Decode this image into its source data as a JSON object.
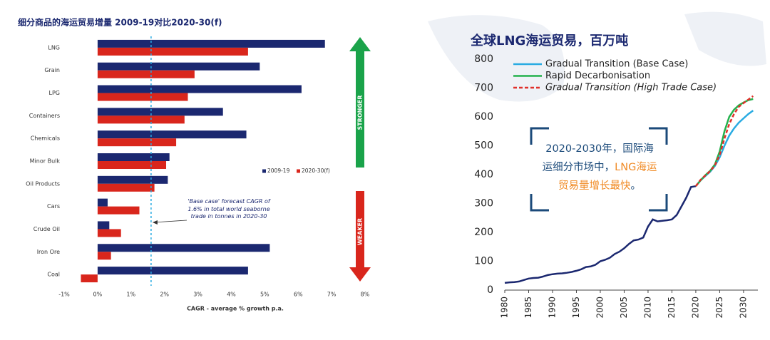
{
  "chart_data": [
    {
      "type": "barh",
      "title": "细分商品的海运贸易增量 2009-19对比2020-30(f)",
      "categories": [
        "LNG",
        "Grain",
        "LPG",
        "Containers",
        "Chemicals",
        "Minor Bulk",
        "Oil Products",
        "Cars",
        "Crude Oil",
        "Iron Ore",
        "Coal"
      ],
      "series": [
        {
          "name": "2009-19",
          "color": "#1b2870",
          "values": [
            6.8,
            4.85,
            6.1,
            3.75,
            4.45,
            2.15,
            2.1,
            0.3,
            0.35,
            5.15,
            4.5
          ]
        },
        {
          "name": "2020-30(f)",
          "color": "#d9261c",
          "values": [
            4.5,
            2.9,
            2.7,
            2.6,
            2.35,
            2.05,
            1.7,
            1.25,
            0.7,
            0.4,
            -0.5
          ]
        }
      ],
      "xlim": [
        -1,
        8
      ],
      "xticks": [
        {
          "value": -1,
          "label": "-1%"
        },
        {
          "value": 0,
          "label": "0%"
        },
        {
          "value": 1,
          "label": "1%"
        },
        {
          "value": 2,
          "label": "2%"
        },
        {
          "value": 3,
          "label": "3%"
        },
        {
          "value": 4,
          "label": "4%"
        },
        {
          "value": 5,
          "label": "5%"
        },
        {
          "value": 6,
          "label": "6%"
        },
        {
          "value": 7,
          "label": "7%"
        },
        {
          "value": 8,
          "label": "8%"
        }
      ],
      "xlabel": "CAGR - average % growth p.a.",
      "reference_line": 1.6,
      "annotation": "'Base case' forecast CAGR of 1.6% in total world seaborne trade in tonnes in 2020-30",
      "arrow_labels": [
        "STRONGER",
        "WEAKER"
      ],
      "legend": "center-right"
    },
    {
      "type": "line",
      "title": "全球LNG海运贸易，百万吨",
      "x": [
        1980,
        1981,
        1982,
        1983,
        1984,
        1985,
        1986,
        1987,
        1988,
        1989,
        1990,
        1991,
        1992,
        1993,
        1994,
        1995,
        1996,
        1997,
        1998,
        1999,
        2000,
        2001,
        2002,
        2003,
        2004,
        2005,
        2006,
        2007,
        2008,
        2009,
        2010,
        2011,
        2012,
        2013,
        2014,
        2015,
        2016,
        2017,
        2018,
        2019,
        2020,
        2021,
        2022,
        2023,
        2024,
        2025,
        2026,
        2027,
        2028,
        2029,
        2030,
        2031,
        2032
      ],
      "series": [
        {
          "color": "#1b2870",
          "style": "solid",
          "values": [
            25,
            27,
            28,
            30,
            35,
            40,
            42,
            43,
            47,
            52,
            55,
            57,
            58,
            60,
            63,
            67,
            72,
            80,
            82,
            88,
            100,
            105,
            112,
            125,
            133,
            145,
            160,
            172,
            175,
            182,
            220,
            245,
            238,
            240,
            242,
            245,
            260,
            290,
            320,
            357,
            360,
            null,
            null,
            null,
            null,
            null,
            null,
            null,
            null,
            null,
            null,
            null,
            null
          ]
        },
        {
          "name": "Gradual Transition (Base Case)",
          "color": "#29abe2",
          "style": "solid",
          "values": [
            null,
            null,
            null,
            null,
            null,
            null,
            null,
            null,
            null,
            null,
            null,
            null,
            null,
            null,
            null,
            null,
            null,
            null,
            null,
            null,
            null,
            null,
            null,
            null,
            null,
            null,
            null,
            null,
            null,
            null,
            null,
            null,
            null,
            null,
            null,
            null,
            null,
            null,
            null,
            null,
            360,
            380,
            395,
            410,
            430,
            460,
            500,
            535,
            560,
            580,
            595,
            610,
            622
          ]
        },
        {
          "name": "Rapid Decarbonisation",
          "color": "#22b14c",
          "style": "solid",
          "values": [
            null,
            null,
            null,
            null,
            null,
            null,
            null,
            null,
            null,
            null,
            null,
            null,
            null,
            null,
            null,
            null,
            null,
            null,
            null,
            null,
            null,
            null,
            null,
            null,
            null,
            null,
            null,
            null,
            null,
            null,
            null,
            null,
            null,
            null,
            null,
            null,
            null,
            null,
            null,
            null,
            360,
            380,
            398,
            413,
            435,
            480,
            550,
            600,
            625,
            640,
            650,
            658,
            662
          ]
        },
        {
          "name": "Gradual Transition (High Trade Case)",
          "color": "#e0302a",
          "style": "dashed",
          "values": [
            null,
            null,
            null,
            null,
            null,
            null,
            null,
            null,
            null,
            null,
            null,
            null,
            null,
            null,
            null,
            null,
            null,
            null,
            null,
            null,
            null,
            null,
            null,
            null,
            null,
            null,
            null,
            null,
            null,
            null,
            null,
            null,
            null,
            null,
            null,
            null,
            null,
            null,
            null,
            null,
            360,
            382,
            397,
            412,
            432,
            468,
            525,
            575,
            610,
            635,
            648,
            660,
            672
          ]
        }
      ],
      "xlim": [
        1980,
        2033
      ],
      "xticks": [
        1980,
        1985,
        1990,
        1995,
        2000,
        2005,
        2010,
        2015,
        2020,
        2025,
        2030
      ],
      "ylim": [
        0,
        800
      ],
      "yticks": [
        0,
        100,
        200,
        300,
        400,
        500,
        600,
        700,
        800
      ],
      "legend": "top-left",
      "annotation": [
        "2020-2030年，国际海运细分市场中，",
        "LNG海运贸易量增长最快",
        "。"
      ]
    }
  ]
}
